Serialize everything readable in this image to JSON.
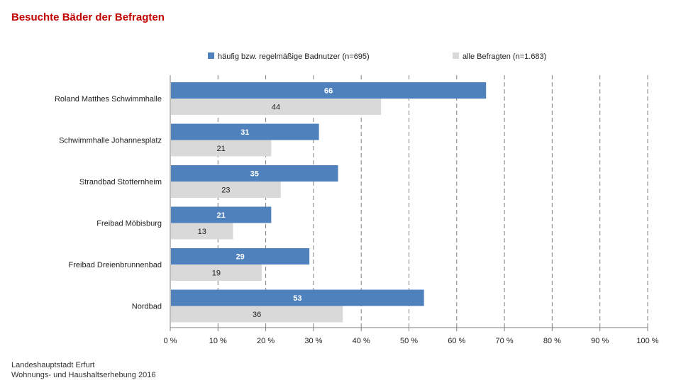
{
  "chart_data": {
    "type": "bar",
    "orientation": "horizontal",
    "title": "Besuchte Bäder der Befragten",
    "categories": [
      "Roland Matthes Schwimmhalle",
      "Schwimmhalle Johannesplatz",
      "Strandbad Stotternheim",
      "Freibad Möbisburg",
      "Freibad Dreienbrunnenbad",
      "Nordbad"
    ],
    "series": [
      {
        "name": "häufig bzw. regelmäßige Badnutzer (n=695)",
        "values": [
          66,
          31,
          35,
          21,
          29,
          53
        ],
        "color": "#4f81bd",
        "label_color": "#ffffff"
      },
      {
        "name": "alle Befragten (n=1.683)",
        "values": [
          44,
          21,
          23,
          13,
          19,
          36
        ],
        "color": "#d9d9d9",
        "label_color": "#222222"
      }
    ],
    "xlim": [
      0,
      100
    ],
    "xticks": [
      0,
      10,
      20,
      30,
      40,
      50,
      60,
      70,
      80,
      90,
      100
    ],
    "tick_suffix": " %",
    "grid": "vertical dashed",
    "legend_position": "top"
  },
  "source": {
    "line1": "Landeshauptstadt Erfurt",
    "line2": "Wohnungs- und Haushaltserhebung 2016"
  }
}
